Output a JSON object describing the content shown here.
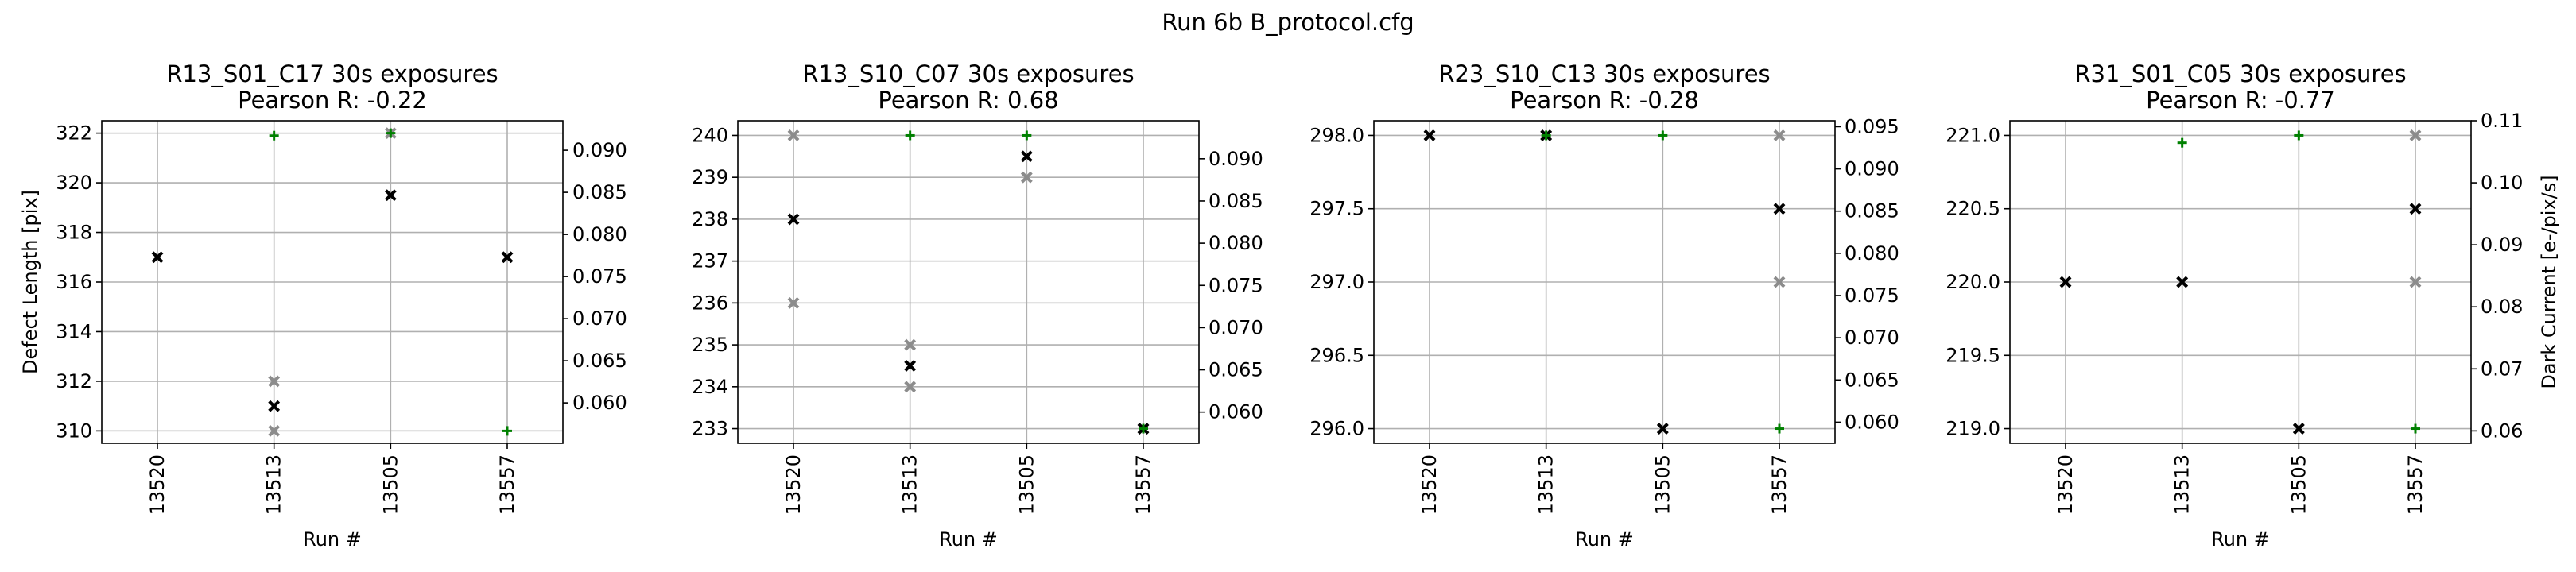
{
  "suptitle": "Run 6b B_protocol.cfg",
  "shared": {
    "xlabel": "Run #",
    "ylabel_left": "Defect Length [pix]",
    "ylabel_right": "Dark Current [e-/pix/s]"
  },
  "colors": {
    "black_marker": "#000000",
    "gray_marker": "#8c8c8c",
    "green_marker": "#008000",
    "grid": "#b0b0b0"
  },
  "chart_data": [
    {
      "type": "scatter",
      "title": "R13_S01_C17 30s exposures",
      "subtitle": "Pearson R: -0.22",
      "categories": [
        "13520",
        "13513",
        "13505",
        "13557"
      ],
      "ylim": [
        309.5,
        322.5
      ],
      "yticks": [
        310,
        312,
        314,
        316,
        318,
        320,
        322
      ],
      "ylim_right": [
        0.0552,
        0.0935
      ],
      "yticks_right": [
        0.06,
        0.065,
        0.07,
        0.075,
        0.08,
        0.085,
        0.09
      ],
      "ylabel_left_visible": true,
      "ylabel_right_visible": false,
      "series": [
        {
          "color": "gray",
          "marker": "x",
          "axis": "left",
          "values": [
            317,
            310,
            322,
            317
          ],
          "extra": [
            null,
            312,
            null,
            null
          ]
        },
        {
          "color": "black",
          "marker": "x",
          "axis": "left",
          "values": [
            317,
            311,
            319.5,
            317
          ]
        },
        {
          "color": "green",
          "marker": "+",
          "axis": "left",
          "values": [
            null,
            321.9,
            322,
            310
          ]
        }
      ]
    },
    {
      "type": "scatter",
      "title": "R13_S10_C07 30s exposures",
      "subtitle": "Pearson R: 0.68",
      "categories": [
        "13520",
        "13513",
        "13505",
        "13557"
      ],
      "ylim": [
        232.65,
        240.35
      ],
      "yticks": [
        233,
        234,
        235,
        236,
        237,
        238,
        239,
        240
      ],
      "ylim_right": [
        0.0563,
        0.0945
      ],
      "yticks_right": [
        0.06,
        0.065,
        0.07,
        0.075,
        0.08,
        0.085,
        0.09
      ],
      "ylabel_left_visible": false,
      "ylabel_right_visible": false,
      "series": [
        {
          "color": "gray",
          "marker": "x",
          "axis": "left",
          "values": [
            240,
            235,
            239,
            233
          ],
          "extra": [
            236,
            234,
            null,
            null
          ]
        },
        {
          "color": "black",
          "marker": "x",
          "axis": "left",
          "values": [
            238,
            234.5,
            239.5,
            233
          ]
        },
        {
          "color": "green",
          "marker": "+",
          "axis": "left",
          "values": [
            null,
            240,
            240,
            233
          ]
        }
      ]
    },
    {
      "type": "scatter",
      "title": "R23_S10_C13 30s exposures",
      "subtitle": "Pearson R: -0.28",
      "categories": [
        "13520",
        "13513",
        "13505",
        "13557"
      ],
      "ylim": [
        295.9,
        298.1
      ],
      "yticks": [
        296.0,
        296.5,
        297.0,
        297.5,
        298.0
      ],
      "ylim_right": [
        0.0575,
        0.0957
      ],
      "yticks_right": [
        0.06,
        0.065,
        0.07,
        0.075,
        0.08,
        0.085,
        0.09,
        0.095
      ],
      "ylabel_left_visible": false,
      "ylabel_right_visible": false,
      "series": [
        {
          "color": "gray",
          "marker": "x",
          "axis": "left",
          "values": [
            298,
            298,
            296,
            298
          ],
          "extra": [
            null,
            null,
            null,
            297
          ]
        },
        {
          "color": "black",
          "marker": "x",
          "axis": "left",
          "values": [
            298,
            298,
            296,
            297.5
          ]
        },
        {
          "color": "green",
          "marker": "+",
          "axis": "left",
          "values": [
            null,
            298,
            298,
            296
          ]
        }
      ]
    },
    {
      "type": "scatter",
      "title": "R31_S01_C05 30s exposures",
      "subtitle": "Pearson R: -0.77",
      "categories": [
        "13520",
        "13513",
        "13505",
        "13557"
      ],
      "ylim": [
        218.9,
        221.1
      ],
      "yticks": [
        219.0,
        219.5,
        220.0,
        220.5,
        221.0
      ],
      "ylim_right": [
        0.058,
        0.11
      ],
      "yticks_right": [
        0.06,
        0.07,
        0.08,
        0.09,
        0.1,
        0.11
      ],
      "ylabel_left_visible": false,
      "ylabel_right_visible": true,
      "series": [
        {
          "color": "gray",
          "marker": "x",
          "axis": "left",
          "values": [
            220,
            220,
            219,
            221
          ],
          "extra": [
            null,
            null,
            null,
            220
          ]
        },
        {
          "color": "black",
          "marker": "x",
          "axis": "left",
          "values": [
            220,
            220,
            219,
            220.5
          ]
        },
        {
          "color": "green",
          "marker": "+",
          "axis": "left",
          "values": [
            null,
            220.95,
            221,
            219
          ]
        }
      ]
    }
  ]
}
